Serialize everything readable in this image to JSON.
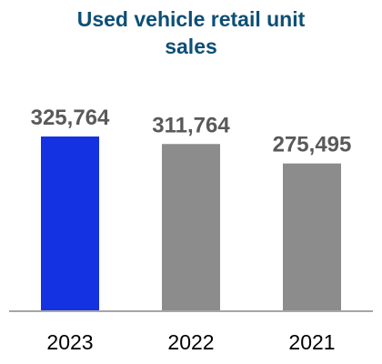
{
  "chart_data": {
    "type": "bar",
    "title_lines": [
      "Used vehicle retail unit",
      "sales"
    ],
    "categories": [
      "2023",
      "2022",
      "2021"
    ],
    "values": [
      325764,
      311764,
      275495
    ],
    "value_labels": [
      "325,764",
      "311,764",
      "275,495"
    ],
    "xlabel": "",
    "ylabel": "",
    "ylim": [
      0,
      325764
    ],
    "grid": false,
    "legend": "none",
    "colors": [
      "#1432e2",
      "#8c8c8c",
      "#8c8c8c"
    ],
    "axis_color": "#a6a6a6"
  }
}
